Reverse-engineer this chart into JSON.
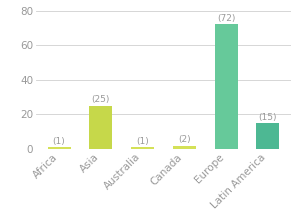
{
  "categories": [
    "Africa",
    "Asia",
    "Australia",
    "Canada",
    "Europe",
    "Latin America"
  ],
  "values": [
    1,
    25,
    1,
    2,
    72,
    15
  ],
  "bar_colors": [
    "#d4e157",
    "#c6d84a",
    "#d4e157",
    "#d4e157",
    "#66c99a",
    "#4db893"
  ],
  "labels": [
    "(1)",
    "(25)",
    "(1)",
    "(2)",
    "(72)",
    "(15)"
  ],
  "ylim": [
    0,
    80
  ],
  "yticks": [
    0,
    20,
    40,
    60,
    80
  ],
  "background_color": "#ffffff",
  "grid_color": "#d0d0d0",
  "label_color": "#999999",
  "tick_color": "#999999",
  "label_fontsize": 6.5,
  "tick_fontsize": 7.5
}
